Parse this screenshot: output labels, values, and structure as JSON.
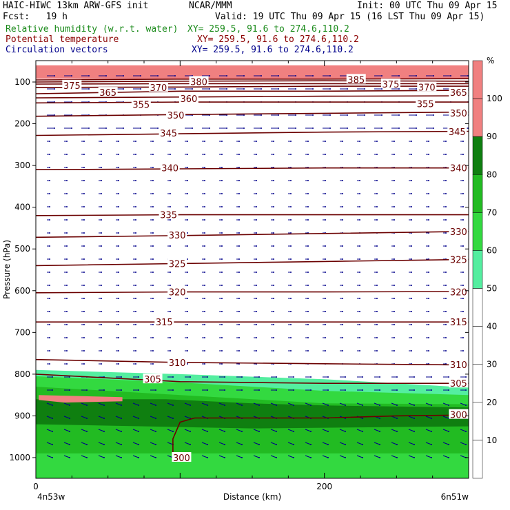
{
  "header": {
    "model": "HAIC-HIWC 13km ARW-GFS init",
    "org": "NCAR/MMM",
    "init": "Init: 00 UTC Thu 09 Apr 15",
    "fcst": "Fcst:   19 h",
    "valid": "Valid: 19 UTC Thu 09 Apr 15 (16 LST Thu 09 Apr 15)",
    "field1": "Relative humidity (w.r.t. water)",
    "field1_xy": "XY= 259.5, 91.6 to 274.6,110.2",
    "field2": "Potential temperature",
    "field2_xy": "XY= 259.5, 91.6 to 274.6,110.2",
    "field3": "Circulation vectors",
    "field3_xy": "XY= 259.5, 91.6 to 274.6,110.2",
    "colors": {
      "field1": "#1a8a1a",
      "field2": "#8b0000",
      "field3": "#00008b"
    }
  },
  "chart_data": {
    "type": "heatmap",
    "title": "",
    "xlabel": "Distance (km)",
    "ylabel": "Pressure (hPa)",
    "xlim": [
      0,
      300
    ],
    "ylim": [
      1050,
      60
    ],
    "x_ticks": [
      0,
      200
    ],
    "y_ticks": [
      100,
      200,
      300,
      400,
      500,
      600,
      700,
      800,
      900,
      1000
    ],
    "x_start_label": "4n53w",
    "x_end_label": "6n51w",
    "colorbar": {
      "unit": "%",
      "levels": [
        10,
        20,
        30,
        40,
        50,
        60,
        70,
        80,
        90,
        100
      ],
      "colors": [
        "#ffffff",
        "#ffffff",
        "#ffffff",
        "#ffffff",
        "#ffffff",
        "#54eea0",
        "#33d940",
        "#22bb22",
        "#0f7f10",
        "#f08080"
      ]
    },
    "theta_contours": [
      {
        "label": "300",
        "points": [
          [
            95,
            1000
          ],
          [
            95,
            955
          ],
          [
            100,
            915
          ],
          [
            110,
            905
          ],
          [
            200,
            905
          ],
          [
            250,
            900
          ],
          [
            300,
            898
          ]
        ]
      },
      {
        "label": "305",
        "points": [
          [
            0,
            800
          ],
          [
            100,
            818
          ],
          [
            200,
            822
          ],
          [
            300,
            822
          ]
        ]
      },
      {
        "label": "310",
        "points": [
          [
            0,
            765
          ],
          [
            100,
            772
          ],
          [
            200,
            775
          ],
          [
            300,
            778
          ]
        ]
      },
      {
        "label": "315",
        "points": [
          [
            0,
            675
          ],
          [
            100,
            675
          ],
          [
            200,
            675
          ],
          [
            300,
            675
          ]
        ]
      },
      {
        "label": "320",
        "points": [
          [
            0,
            605
          ],
          [
            100,
            603
          ],
          [
            200,
            603
          ],
          [
            300,
            602
          ]
        ]
      },
      {
        "label": "325",
        "points": [
          [
            0,
            540
          ],
          [
            100,
            535
          ],
          [
            200,
            530
          ],
          [
            300,
            525
          ]
        ]
      },
      {
        "label": "330",
        "points": [
          [
            0,
            472
          ],
          [
            100,
            468
          ],
          [
            200,
            463
          ],
          [
            300,
            458
          ]
        ]
      },
      {
        "label": "335",
        "points": [
          [
            0,
            420
          ],
          [
            100,
            418
          ],
          [
            200,
            418
          ],
          [
            300,
            418
          ]
        ]
      },
      {
        "label": "340",
        "points": [
          [
            0,
            310
          ],
          [
            100,
            308
          ],
          [
            200,
            306
          ],
          [
            300,
            306
          ]
        ]
      },
      {
        "label": "345",
        "points": [
          [
            0,
            228
          ],
          [
            100,
            224
          ],
          [
            200,
            220
          ],
          [
            300,
            218
          ]
        ]
      },
      {
        "label": "350",
        "points": [
          [
            0,
            182
          ],
          [
            100,
            178
          ],
          [
            200,
            175
          ],
          [
            300,
            172
          ]
        ]
      },
      {
        "label": "355",
        "points": [
          [
            0,
            150
          ],
          [
            100,
            148
          ],
          [
            200,
            148
          ],
          [
            300,
            148
          ]
        ]
      },
      {
        "label": "360",
        "points": [
          [
            0,
            138
          ],
          [
            100,
            136
          ],
          [
            200,
            134
          ],
          [
            300,
            133
          ]
        ]
      },
      {
        "label": "365",
        "points": [
          [
            0,
            128
          ],
          [
            100,
            122
          ],
          [
            200,
            122
          ],
          [
            300,
            120
          ]
        ]
      },
      {
        "label": "370",
        "points": [
          [
            0,
            113
          ],
          [
            100,
            112
          ],
          [
            200,
            110
          ],
          [
            300,
            110
          ]
        ]
      },
      {
        "label": "375",
        "points": [
          [
            0,
            105
          ],
          [
            100,
            104
          ],
          [
            200,
            104
          ],
          [
            300,
            104
          ]
        ]
      },
      {
        "label": "380",
        "points": [
          [
            0,
            100
          ],
          [
            100,
            98
          ],
          [
            200,
            97
          ],
          [
            300,
            98
          ]
        ]
      },
      {
        "label": "385",
        "points": [
          [
            0,
            95
          ],
          [
            100,
            93
          ],
          [
            200,
            93
          ],
          [
            300,
            92
          ]
        ]
      }
    ],
    "theta_labels": [
      {
        "text": "375",
        "x": 25,
        "p": 108
      },
      {
        "text": "380",
        "x": 113,
        "p": 99
      },
      {
        "text": "385",
        "x": 222,
        "p": 94
      },
      {
        "text": "375",
        "x": 246,
        "p": 105
      },
      {
        "text": "370",
        "x": 85,
        "p": 113
      },
      {
        "text": "370",
        "x": 271,
        "p": 112
      },
      {
        "text": "365",
        "x": 50,
        "p": 125
      },
      {
        "text": "365",
        "x": 293,
        "p": 125
      },
      {
        "text": "360",
        "x": 106,
        "p": 140
      },
      {
        "text": "355",
        "x": 73,
        "p": 154
      },
      {
        "text": "355",
        "x": 270,
        "p": 152
      },
      {
        "text": "350",
        "x": 97,
        "p": 179
      },
      {
        "text": "350",
        "x": 293,
        "p": 174
      },
      {
        "text": "345",
        "x": 92,
        "p": 222
      },
      {
        "text": "345",
        "x": 292,
        "p": 219
      },
      {
        "text": "340",
        "x": 93,
        "p": 306
      },
      {
        "text": "340",
        "x": 293,
        "p": 306
      },
      {
        "text": "335",
        "x": 92,
        "p": 418
      },
      {
        "text": "330",
        "x": 98,
        "p": 467
      },
      {
        "text": "330",
        "x": 293,
        "p": 458
      },
      {
        "text": "325",
        "x": 98,
        "p": 535
      },
      {
        "text": "325",
        "x": 293,
        "p": 525
      },
      {
        "text": "320",
        "x": 98,
        "p": 603
      },
      {
        "text": "320",
        "x": 293,
        "p": 603
      },
      {
        "text": "315",
        "x": 89,
        "p": 675
      },
      {
        "text": "315",
        "x": 293,
        "p": 675
      },
      {
        "text": "310",
        "x": 98,
        "p": 772
      },
      {
        "text": "310",
        "x": 293,
        "p": 777
      },
      {
        "text": "305",
        "x": 81,
        "p": 812
      },
      {
        "text": "305",
        "x": 293,
        "p": 822
      },
      {
        "text": "300",
        "x": 293,
        "p": 897
      },
      {
        "text": "300",
        "x": 101,
        "p": 1000
      }
    ],
    "rh_regions": [
      {
        "level": 50,
        "points": [
          [
            0,
            760
          ],
          [
            100,
            770
          ],
          [
            200,
            790
          ],
          [
            300,
            815
          ],
          [
            300,
            1050
          ],
          [
            0,
            1050
          ]
        ]
      },
      {
        "level": 60,
        "points": [
          [
            0,
            790
          ],
          [
            100,
            800
          ],
          [
            200,
            812
          ],
          [
            300,
            832
          ],
          [
            300,
            1050
          ],
          [
            0,
            1050
          ]
        ]
      },
      {
        "level": 70,
        "points": [
          [
            0,
            805
          ],
          [
            100,
            820
          ],
          [
            200,
            840
          ],
          [
            300,
            850
          ],
          [
            300,
            1050
          ],
          [
            0,
            1050
          ]
        ]
      },
      {
        "level": 80,
        "points": [
          [
            0,
            830
          ],
          [
            100,
            850
          ],
          [
            200,
            870
          ],
          [
            300,
            872
          ],
          [
            300,
            990
          ],
          [
            0,
            990
          ]
        ]
      },
      {
        "level": 90,
        "points": [
          [
            0,
            860
          ],
          [
            90,
            860
          ],
          [
            150,
            870
          ],
          [
            200,
            875
          ],
          [
            300,
            880
          ],
          [
            300,
            925
          ],
          [
            150,
            930
          ],
          [
            0,
            920
          ]
        ]
      },
      {
        "level": 100,
        "points": [
          [
            2,
            850
          ],
          [
            60,
            855
          ],
          [
            60,
            865
          ],
          [
            20,
            868
          ],
          [
            2,
            862
          ]
        ]
      },
      {
        "level": 100,
        "points": [
          [
            0,
            60
          ],
          [
            300,
            60
          ],
          [
            300,
            92
          ],
          [
            0,
            92
          ]
        ]
      }
    ]
  }
}
